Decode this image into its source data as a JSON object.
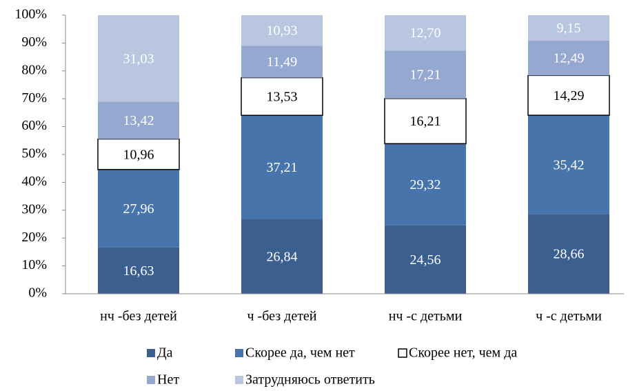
{
  "chart_data": {
    "type": "stacked_bar_percent",
    "categories": [
      "нч -без детей",
      "ч -без детей",
      "нч -с детьми",
      "ч -с детьми"
    ],
    "series": [
      {
        "name": "Да",
        "color": "#3b5f8f",
        "values": [
          16.63,
          26.84,
          24.56,
          28.66
        ],
        "value_labels": [
          "16,63",
          "26,84",
          "24,56",
          "28,66"
        ]
      },
      {
        "name": "Скорее да, чем нет",
        "color": "#4774aa",
        "values": [
          27.96,
          37.21,
          29.32,
          35.42
        ],
        "value_labels": [
          "27,96",
          "37,21",
          "29,32",
          "35,42"
        ]
      },
      {
        "name": "Скорее нет, чем да",
        "color": "#ffffff",
        "values": [
          10.96,
          13.53,
          16.21,
          14.29
        ],
        "value_labels": [
          "10,96",
          "13,53",
          "16,21",
          "14,29"
        ]
      },
      {
        "name": "Нет",
        "color": "#95a9d0",
        "values": [
          13.42,
          11.49,
          17.21,
          12.49
        ],
        "value_labels": [
          "13,42",
          "11,49",
          "17,21",
          "12,49"
        ]
      },
      {
        "name": "Затрудняюсь ответить",
        "color": "#b9c6df",
        "values": [
          31.03,
          10.93,
          12.7,
          9.15
        ],
        "value_labels": [
          "31,03",
          "10,93",
          "12,70",
          "9,15"
        ]
      }
    ],
    "ylim": [
      0,
      100
    ],
    "yticks": [
      {
        "value": 0,
        "label": "0%"
      },
      {
        "value": 10,
        "label": "10%"
      },
      {
        "value": 20,
        "label": "20%"
      },
      {
        "value": 30,
        "label": "30%"
      },
      {
        "value": 40,
        "label": "40%"
      },
      {
        "value": 50,
        "label": "50%"
      },
      {
        "value": 60,
        "label": "60%"
      },
      {
        "value": 70,
        "label": "70%"
      },
      {
        "value": 80,
        "label": "80%"
      },
      {
        "value": 90,
        "label": "90%"
      },
      {
        "value": 100,
        "label": "100%"
      }
    ],
    "grid": false,
    "legend": "bottom"
  }
}
